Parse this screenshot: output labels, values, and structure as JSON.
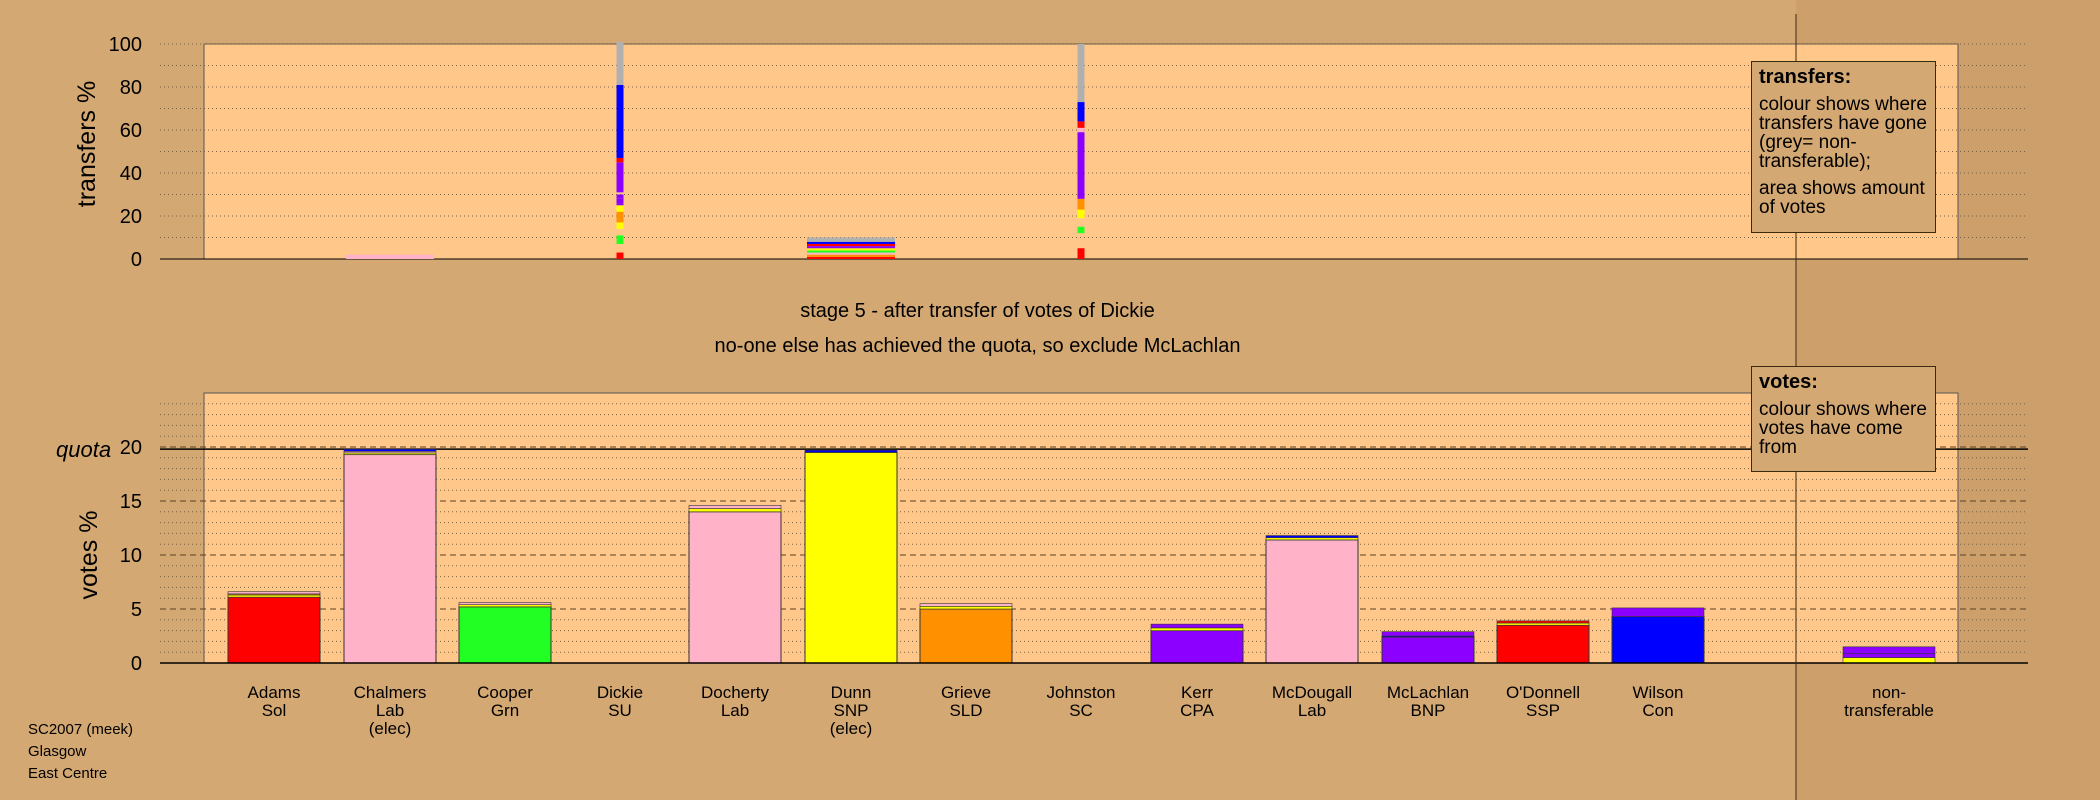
{
  "stage_title": "stage 5 - after transfer of votes of Dickie",
  "stage_subtitle": "no-one else has achieved the quota, so exclude McLachlan",
  "source": [
    "SC2007 (meek)",
    "Glasgow",
    "East Centre"
  ],
  "legend_transfers": {
    "title": "transfers:",
    "p1": "colour shows where transfers have gone (grey= non-transferable);",
    "p2": "area shows amount of votes"
  },
  "legend_votes": {
    "title": "votes:",
    "p1": "colour shows where votes have come from"
  },
  "colors": {
    "background": "#d4a873",
    "plot_fill": "#ffc88a",
    "Sol": "#ff0000",
    "Lab": "#ffb2c8",
    "Grn": "#22ff22",
    "SNP": "#ffff00",
    "SLD": "#ff9100",
    "CPA": "#8c00ff",
    "BNP": "#8c00ff",
    "SSP": "#ff0000",
    "Con": "#0000ff",
    "SU": "#ff0000",
    "SC": "#ff0000",
    "nontransferable": "#b0b0b0"
  },
  "chart_data": [
    {
      "type": "bar",
      "title": "",
      "ylabel": "transfers %",
      "ylim": [
        0,
        100
      ],
      "yticks": [
        0,
        20,
        40,
        60,
        80,
        100
      ],
      "grid": true,
      "categories": [
        "Adams Sol",
        "Chalmers Lab (elec)",
        "Cooper Grn",
        "Dickie SU",
        "Docherty Lab",
        "Dunn SNP (elec)",
        "Grieve SLD",
        "Johnston SC",
        "Kerr CPA",
        "McDougall Lab",
        "McLachlan BNP",
        "O'Donnell SSP",
        "Wilson Con"
      ],
      "bars": [
        {
          "category": "Chalmers Lab (elec)",
          "width": "wide",
          "segments": [
            {
              "party": "Lab",
              "value": 2
            }
          ]
        },
        {
          "category": "Dickie SU",
          "width": "thin",
          "segments": [
            {
              "party": "Sol",
              "value": 3
            },
            {
              "party": "gap",
              "value": 4
            },
            {
              "party": "Grn",
              "value": 4
            },
            {
              "party": "gap",
              "value": 3
            },
            {
              "party": "SNP",
              "value": 3
            },
            {
              "party": "SLD",
              "value": 5
            },
            {
              "party": "SNP",
              "value": 3
            },
            {
              "party": "CPA",
              "value": 1
            },
            {
              "party": "BNP",
              "value": 2
            },
            {
              "party": "CPA",
              "value": 2
            },
            {
              "party": "gap",
              "value": 1
            },
            {
              "party": "BNP",
              "value": 14
            },
            {
              "party": "SSP",
              "value": 2
            },
            {
              "party": "Con",
              "value": 34
            },
            {
              "party": "nontransferable",
              "value": 20
            }
          ]
        },
        {
          "category": "Dunn SNP (elec)",
          "width": "wide",
          "segments": [
            {
              "party": "Sol",
              "value": 1
            },
            {
              "party": "SLD",
              "value": 1
            },
            {
              "party": "Lab",
              "value": 1
            },
            {
              "party": "Grn",
              "value": 1
            },
            {
              "party": "SNP",
              "value": 1
            },
            {
              "party": "CPA",
              "value": 1
            },
            {
              "party": "SSP",
              "value": 1
            },
            {
              "party": "Con",
              "value": 1
            },
            {
              "party": "nontransferable",
              "value": 2
            }
          ]
        },
        {
          "category": "Johnston SC",
          "width": "thin",
          "segments": [
            {
              "party": "Sol",
              "value": 5
            },
            {
              "party": "gap",
              "value": 7
            },
            {
              "party": "Grn",
              "value": 3
            },
            {
              "party": "gap",
              "value": 4
            },
            {
              "party": "SNP",
              "value": 4
            },
            {
              "party": "SLD",
              "value": 5
            },
            {
              "party": "BNP",
              "value": 31
            },
            {
              "party": "Lab",
              "value": 2
            },
            {
              "party": "SSP",
              "value": 3
            },
            {
              "party": "Con",
              "value": 9
            },
            {
              "party": "nontransferable",
              "value": 27
            }
          ]
        }
      ]
    },
    {
      "type": "bar",
      "title": "",
      "ylabel": "votes %",
      "ylim": [
        0,
        25
      ],
      "yticks": [
        0,
        5,
        10,
        15,
        20
      ],
      "quota": 19.8,
      "quota_label": "quota",
      "grid": true,
      "categories": [
        "Adams Sol",
        "Chalmers Lab (elec)",
        "Cooper Grn",
        "Dickie SU",
        "Docherty Lab",
        "Dunn SNP (elec)",
        "Grieve SLD",
        "Johnston SC",
        "Kerr CPA",
        "McDougall Lab",
        "McLachlan BNP",
        "O'Donnell SSP",
        "Wilson Con",
        "non-transferable"
      ],
      "candidates": [
        {
          "name": "Adams",
          "party": "Sol",
          "base": 6.1,
          "transfers": [
            {
              "party": "SNP",
              "value": 0.2
            },
            {
              "party": "SLD",
              "value": 0.1
            },
            {
              "party": "Lab",
              "value": 0.2
            }
          ]
        },
        {
          "name": "Chalmers",
          "party": "Lab",
          "elected": "(elec)",
          "base": 19.3,
          "transfers": [
            {
              "party": "SNP",
              "value": 0.15
            },
            {
              "party": "Lab",
              "value": 0.15
            },
            {
              "party": "Con",
              "value": 0.2
            }
          ]
        },
        {
          "name": "Cooper",
          "party": "Grn",
          "base": 5.2,
          "transfers": [
            {
              "party": "SNP",
              "value": 0.2
            },
            {
              "party": "Lab",
              "value": 0.2
            }
          ]
        },
        {
          "name": "Dickie",
          "party": "SU",
          "base": 0,
          "transfers": []
        },
        {
          "name": "Docherty",
          "party": "Lab",
          "base": 14.0,
          "transfers": [
            {
              "party": "SNP",
              "value": 0.3
            },
            {
              "party": "Lab",
              "value": 0.3
            }
          ]
        },
        {
          "name": "Dunn",
          "party": "SNP",
          "elected": "(elec)",
          "base": 19.5,
          "transfers": [
            {
              "party": "Con",
              "value": 0.2
            }
          ]
        },
        {
          "name": "Grieve",
          "party": "SLD",
          "base": 5.0,
          "transfers": [
            {
              "party": "SNP",
              "value": 0.25
            },
            {
              "party": "Lab",
              "value": 0.25
            }
          ]
        },
        {
          "name": "Johnston",
          "party": "SC",
          "base": 0,
          "transfers": []
        },
        {
          "name": "Kerr",
          "party": "CPA",
          "base": 3.0,
          "transfers": [
            {
              "party": "SNP",
              "value": 0.25
            },
            {
              "party": "CPA",
              "value": 0.35
            }
          ]
        },
        {
          "name": "McDougall",
          "party": "Lab",
          "base": 11.4,
          "transfers": [
            {
              "party": "SNP",
              "value": 0.2
            },
            {
              "party": "Con",
              "value": 0.2
            }
          ]
        },
        {
          "name": "McLachlan",
          "party": "BNP",
          "base": 2.4,
          "transfers": [
            {
              "party": "Con",
              "value": 0.1
            },
            {
              "party": "BNP",
              "value": 0.4
            }
          ]
        },
        {
          "name": "O'Donnell",
          "party": "SSP",
          "base": 3.5,
          "transfers": [
            {
              "party": "SNP",
              "value": 0.2
            },
            {
              "party": "SSP",
              "value": 0.2
            }
          ]
        },
        {
          "name": "Wilson",
          "party": "Con",
          "base": 4.3,
          "transfers": [
            {
              "party": "CPA",
              "value": 0.8
            }
          ]
        },
        {
          "name": "non-transferable",
          "label_lines": [
            "non-",
            "transferable"
          ],
          "base": 0,
          "transfers": [
            {
              "party": "SNP",
              "value": 0.5
            },
            {
              "party": "CPA",
              "value": 0.4
            },
            {
              "party": "BNP",
              "value": 0.6
            }
          ]
        }
      ]
    }
  ]
}
